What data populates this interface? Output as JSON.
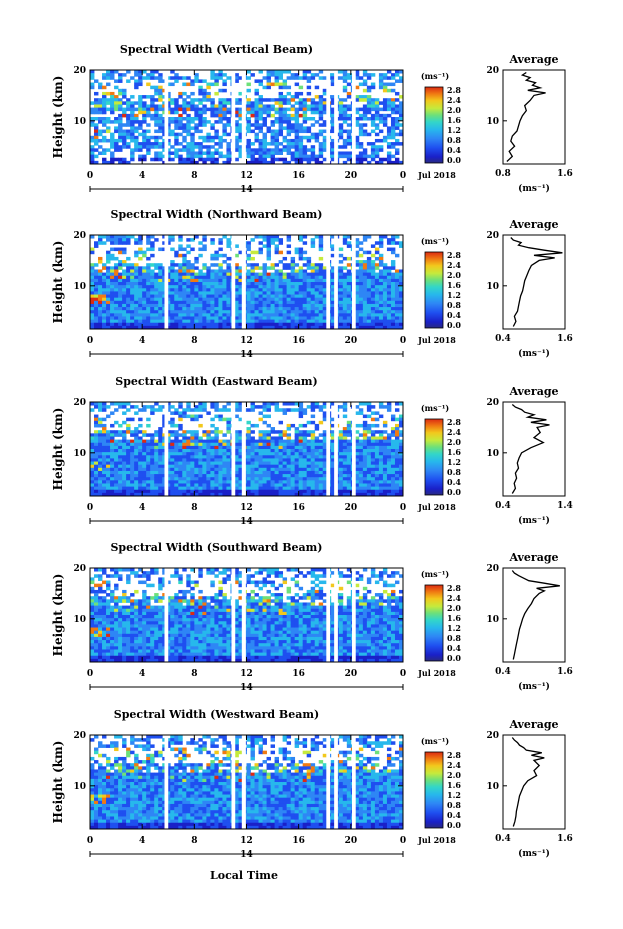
{
  "date_label": "Jul 2018",
  "day_label": "14",
  "x_axis_label": "Local Time",
  "y_axis_label": "Height (km)",
  "units_label": "(ms⁻¹)",
  "avg_title": "Average",
  "avg_xlabel": "(ms⁻¹)",
  "colorbar": {
    "ticks": [
      "0.0",
      "0.4",
      "0.8",
      "1.2",
      "1.6",
      "2.0",
      "2.4",
      "2.8"
    ],
    "colors": [
      "#2a2a80",
      "#1a20c8",
      "#1f4ff0",
      "#2e86f5",
      "#27b8ec",
      "#33d6c8",
      "#6de07a",
      "#c6ea3c",
      "#f2c81c",
      "#f07a12",
      "#dc2a12"
    ]
  },
  "chart_data": [
    {
      "type": "heatmap",
      "title": "Spectral Width (Vertical Beam)",
      "x_ticks": [
        "0",
        "4",
        "8",
        "12",
        "16",
        "20",
        "0"
      ],
      "y_ticks": [
        "20",
        "10"
      ],
      "xlim": [
        0,
        24
      ],
      "ylim": [
        1.5,
        20
      ]
    },
    {
      "type": "heatmap",
      "title": "Spectral Width (Northward Beam)",
      "x_ticks": [
        "0",
        "4",
        "8",
        "12",
        "16",
        "20",
        "0"
      ],
      "y_ticks": [
        "20",
        "10"
      ],
      "xlim": [
        0,
        24
      ],
      "ylim": [
        1.5,
        20
      ]
    },
    {
      "type": "heatmap",
      "title": "Spectral Width (Eastward Beam)",
      "x_ticks": [
        "0",
        "4",
        "8",
        "12",
        "16",
        "20",
        "0"
      ],
      "y_ticks": [
        "20",
        "10"
      ],
      "xlim": [
        0,
        24
      ],
      "ylim": [
        1.5,
        20
      ]
    },
    {
      "type": "heatmap",
      "title": "Spectral Width (Southward Beam)",
      "x_ticks": [
        "0",
        "4",
        "8",
        "12",
        "16",
        "20",
        "0"
      ],
      "y_ticks": [
        "20",
        "10"
      ],
      "xlim": [
        0,
        24
      ],
      "ylim": [
        1.5,
        20
      ]
    },
    {
      "type": "heatmap",
      "title": "Spectral Width (Westward Beam)",
      "x_ticks": [
        "0",
        "4",
        "8",
        "12",
        "16",
        "20",
        "0"
      ],
      "y_ticks": [
        "20",
        "10"
      ],
      "xlim": [
        0,
        24
      ],
      "ylim": [
        1.5,
        20
      ]
    },
    {
      "type": "line",
      "title": "Average",
      "x_ticks": [
        "0.8",
        "1.6"
      ],
      "xlim": [
        0.8,
        1.6
      ],
      "y_ticks": [
        "20",
        "10"
      ],
      "ylim": [
        1.5,
        20
      ],
      "height": [
        2,
        3,
        4,
        5,
        6,
        7,
        8,
        9,
        10,
        11,
        12,
        13,
        14,
        15,
        15.5,
        16,
        16.5,
        17,
        17.5,
        18,
        18.5,
        19,
        19.5
      ],
      "width": [
        0.85,
        0.92,
        0.88,
        0.95,
        0.9,
        0.92,
        0.98,
        1.0,
        1.02,
        1.05,
        1.1,
        1.08,
        1.15,
        1.2,
        1.35,
        1.12,
        1.28,
        1.18,
        1.22,
        1.1,
        1.15,
        1.05,
        1.1
      ]
    },
    {
      "type": "line",
      "title": "Average",
      "x_ticks": [
        "0.4",
        "1.6"
      ],
      "xlim": [
        0.4,
        1.6
      ],
      "y_ticks": [
        "20",
        "10"
      ],
      "ylim": [
        1.5,
        20
      ],
      "height": [
        2,
        3,
        4,
        5,
        6,
        7,
        8,
        9,
        10,
        11,
        12,
        13,
        14,
        15,
        15.5,
        16,
        16.5,
        17,
        17.5,
        18,
        18.5,
        19,
        19.5
      ],
      "width": [
        0.6,
        0.65,
        0.62,
        0.68,
        0.7,
        0.72,
        0.74,
        0.78,
        0.8,
        0.82,
        0.86,
        0.9,
        0.95,
        1.1,
        1.4,
        1.0,
        1.55,
        1.2,
        0.9,
        0.7,
        0.75,
        0.6,
        0.55
      ]
    },
    {
      "type": "line",
      "title": "Average",
      "x_ticks": [
        "0.4",
        "1.4"
      ],
      "xlim": [
        0.4,
        1.4
      ],
      "y_ticks": [
        "20",
        "10"
      ],
      "ylim": [
        1.5,
        20
      ],
      "height": [
        2,
        3,
        4,
        5,
        6,
        7,
        8,
        9,
        10,
        11,
        12,
        13,
        14,
        15,
        15.5,
        16,
        16.5,
        17,
        17.5,
        18,
        18.5,
        19,
        19.5
      ],
      "width": [
        0.55,
        0.6,
        0.58,
        0.62,
        0.6,
        0.65,
        0.63,
        0.66,
        0.7,
        0.85,
        1.05,
        0.9,
        1.0,
        0.95,
        1.15,
        0.85,
        1.1,
        0.8,
        0.9,
        0.75,
        0.7,
        0.6,
        0.55
      ]
    },
    {
      "type": "line",
      "title": "Average",
      "x_ticks": [
        "0.4",
        "1.6"
      ],
      "xlim": [
        0.4,
        1.6
      ],
      "y_ticks": [
        "20",
        "10"
      ],
      "ylim": [
        1.5,
        20
      ],
      "height": [
        2,
        3,
        4,
        5,
        6,
        7,
        8,
        9,
        10,
        11,
        12,
        13,
        14,
        15,
        15.5,
        16,
        16.5,
        17,
        17.5,
        18,
        18.5,
        19,
        19.5
      ],
      "width": [
        0.6,
        0.62,
        0.64,
        0.66,
        0.68,
        0.7,
        0.72,
        0.75,
        0.78,
        0.82,
        0.88,
        0.95,
        1.0,
        1.1,
        1.2,
        1.05,
        1.5,
        1.2,
        0.9,
        0.8,
        0.7,
        0.62,
        0.58
      ]
    },
    {
      "type": "line",
      "title": "Average",
      "x_ticks": [
        "0.4",
        "1.6"
      ],
      "xlim": [
        0.4,
        1.6
      ],
      "y_ticks": [
        "20",
        "10"
      ],
      "ylim": [
        1.5,
        20
      ],
      "height": [
        2,
        3,
        4,
        5,
        6,
        7,
        8,
        9,
        10,
        11,
        12,
        13,
        14,
        15,
        15.5,
        16,
        16.5,
        17,
        17.5,
        18,
        18.5,
        19,
        19.5
      ],
      "width": [
        0.6,
        0.63,
        0.65,
        0.66,
        0.68,
        0.7,
        0.72,
        0.76,
        0.8,
        0.88,
        1.05,
        1.0,
        1.1,
        1.0,
        1.2,
        0.95,
        1.15,
        0.85,
        0.8,
        0.72,
        0.68,
        0.62,
        0.58
      ]
    }
  ]
}
